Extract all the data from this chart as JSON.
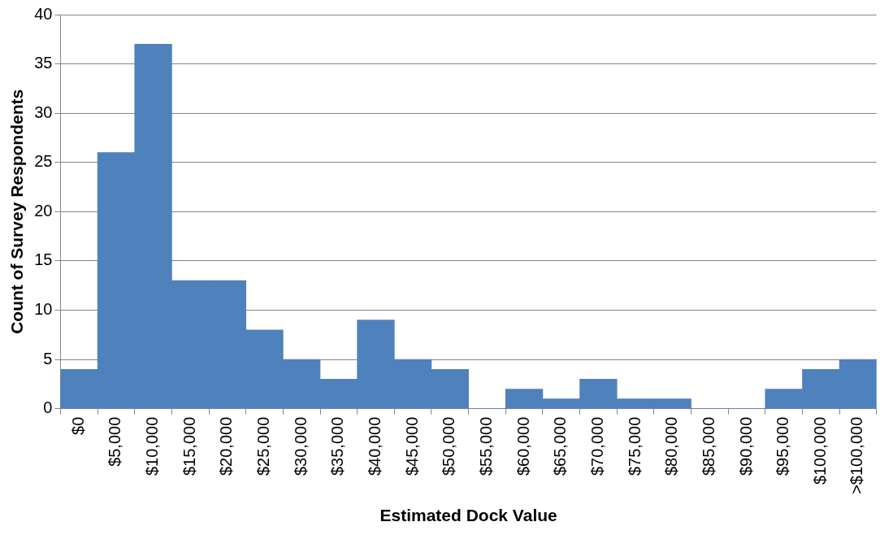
{
  "chart_data": {
    "type": "bar",
    "xlabel": "Estimated Dock Value",
    "ylabel": "Count of Survey Respondents",
    "categories": [
      "$0",
      "$5,000",
      "$10,000",
      "$15,000",
      "$20,000",
      "$25,000",
      "$30,000",
      "$35,000",
      "$40,000",
      "$45,000",
      "$50,000",
      "$55,000",
      "$60,000",
      "$65,000",
      "$70,000",
      "$75,000",
      "$80,000",
      "$85,000",
      "$90,000",
      "$95,000",
      "$100,000",
      ">$100,000"
    ],
    "values": [
      4,
      26,
      37,
      13,
      13,
      8,
      5,
      3,
      9,
      5,
      4,
      0,
      2,
      1,
      3,
      1,
      1,
      0,
      0,
      2,
      4,
      5
    ],
    "color": "#4f81bd",
    "ylim": [
      0,
      40
    ],
    "yticks": [
      0,
      5,
      10,
      15,
      20,
      25,
      30,
      35,
      40
    ],
    "grid": "y",
    "legend": false
  }
}
